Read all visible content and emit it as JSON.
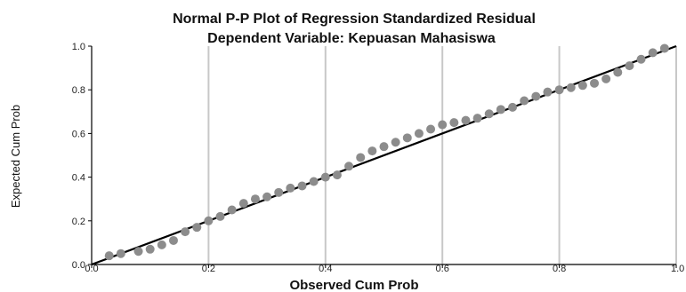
{
  "chart_data": {
    "type": "scatter",
    "title": "Normal P-P Plot of Regression Standardized Residual",
    "subtitle": "Dependent Variable: Kepuasan Mahasiswa",
    "xlabel": "Observed Cum Prob",
    "ylabel": "Expected Cum Prob",
    "xlim": [
      0,
      1
    ],
    "ylim": [
      0,
      1
    ],
    "x_ticks": [
      "0.0",
      "0.2",
      "0.4",
      "0.6",
      "0.8",
      "1.0"
    ],
    "y_ticks": [
      "0.0",
      "0.2",
      "0.4",
      "0.6",
      "0.8",
      "1.0"
    ],
    "grid": "vertical",
    "reference_line": {
      "x": [
        0,
        1
      ],
      "y": [
        0,
        1
      ]
    },
    "point_color": "#8c8c8c",
    "line_color": "#000000",
    "points": [
      {
        "x": 0.03,
        "y": 0.04
      },
      {
        "x": 0.05,
        "y": 0.05
      },
      {
        "x": 0.08,
        "y": 0.06
      },
      {
        "x": 0.1,
        "y": 0.07
      },
      {
        "x": 0.12,
        "y": 0.09
      },
      {
        "x": 0.14,
        "y": 0.11
      },
      {
        "x": 0.16,
        "y": 0.15
      },
      {
        "x": 0.18,
        "y": 0.17
      },
      {
        "x": 0.2,
        "y": 0.2
      },
      {
        "x": 0.22,
        "y": 0.22
      },
      {
        "x": 0.24,
        "y": 0.25
      },
      {
        "x": 0.26,
        "y": 0.28
      },
      {
        "x": 0.28,
        "y": 0.3
      },
      {
        "x": 0.3,
        "y": 0.31
      },
      {
        "x": 0.32,
        "y": 0.33
      },
      {
        "x": 0.34,
        "y": 0.35
      },
      {
        "x": 0.36,
        "y": 0.36
      },
      {
        "x": 0.38,
        "y": 0.38
      },
      {
        "x": 0.4,
        "y": 0.4
      },
      {
        "x": 0.42,
        "y": 0.41
      },
      {
        "x": 0.44,
        "y": 0.45
      },
      {
        "x": 0.46,
        "y": 0.49
      },
      {
        "x": 0.48,
        "y": 0.52
      },
      {
        "x": 0.5,
        "y": 0.54
      },
      {
        "x": 0.52,
        "y": 0.56
      },
      {
        "x": 0.54,
        "y": 0.58
      },
      {
        "x": 0.56,
        "y": 0.6
      },
      {
        "x": 0.58,
        "y": 0.62
      },
      {
        "x": 0.6,
        "y": 0.64
      },
      {
        "x": 0.62,
        "y": 0.65
      },
      {
        "x": 0.64,
        "y": 0.66
      },
      {
        "x": 0.66,
        "y": 0.67
      },
      {
        "x": 0.68,
        "y": 0.69
      },
      {
        "x": 0.7,
        "y": 0.71
      },
      {
        "x": 0.72,
        "y": 0.72
      },
      {
        "x": 0.74,
        "y": 0.75
      },
      {
        "x": 0.76,
        "y": 0.77
      },
      {
        "x": 0.78,
        "y": 0.79
      },
      {
        "x": 0.8,
        "y": 0.8
      },
      {
        "x": 0.82,
        "y": 0.81
      },
      {
        "x": 0.84,
        "y": 0.82
      },
      {
        "x": 0.86,
        "y": 0.83
      },
      {
        "x": 0.88,
        "y": 0.85
      },
      {
        "x": 0.9,
        "y": 0.88
      },
      {
        "x": 0.92,
        "y": 0.91
      },
      {
        "x": 0.94,
        "y": 0.94
      },
      {
        "x": 0.96,
        "y": 0.97
      },
      {
        "x": 0.98,
        "y": 0.99
      }
    ]
  }
}
